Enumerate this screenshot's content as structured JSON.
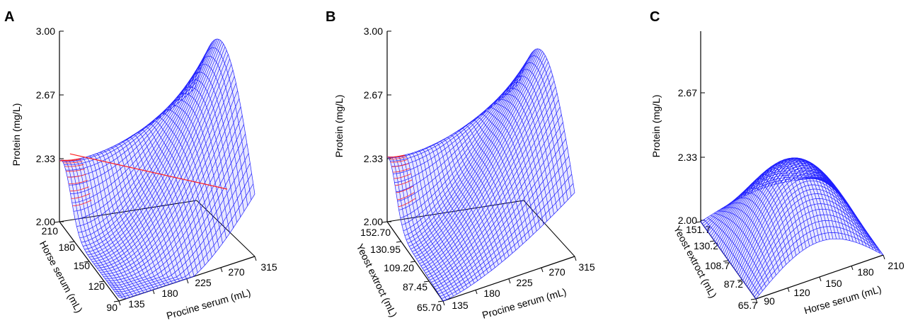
{
  "chart_data": [
    {
      "type": "surface3d",
      "panel_label": "A",
      "zlabel": "Protein (mg/L)",
      "zticks": [
        "2.00",
        "2.33",
        "2.67",
        "3.00"
      ],
      "zlim": [
        2.0,
        3.0
      ],
      "xlabel": "Procine serum (mL)",
      "xticks": [
        "135",
        "180",
        "225",
        "270",
        "315"
      ],
      "xlim": [
        135,
        315
      ],
      "ylabel": "Horse serum (mL)",
      "yticks": [
        "90",
        "120",
        "150",
        "180",
        "210"
      ],
      "ylim": [
        90,
        210
      ],
      "surface_color": "#1f1fff",
      "contour_color": "#ff2020",
      "peak": {
        "x": 315,
        "y": 210,
        "z": 2.88
      }
    },
    {
      "type": "surface3d",
      "panel_label": "B",
      "zlabel": "Protein (mg/L)",
      "zticks": [
        "2.00",
        "2.33",
        "2.67",
        "3.00"
      ],
      "zlim": [
        2.0,
        3.0
      ],
      "xlabel": "Procine serum (mL)",
      "xticks": [
        "135",
        "180",
        "225",
        "270",
        "315"
      ],
      "xlim": [
        135,
        315
      ],
      "ylabel": "Yeost extroct (mL)",
      "yticks": [
        "65.70",
        "87.45",
        "109.20",
        "130.95",
        "152.70"
      ],
      "ylim": [
        65.7,
        152.7
      ],
      "surface_color": "#1f1fff",
      "contour_color": "#ff2020",
      "peak": {
        "x": 315,
        "y": 152.7,
        "z": 2.84
      }
    },
    {
      "type": "surface3d",
      "panel_label": "C",
      "zlabel": "Protein (mg/L)",
      "zticks": [
        "2.00",
        "2.33",
        "2.67"
      ],
      "zlim": [
        2.0,
        2.7
      ],
      "xlabel": "Horse serum (mL)",
      "xticks": [
        "90",
        "120",
        "150",
        "180",
        "210"
      ],
      "xlim": [
        90,
        210
      ],
      "ylabel": "Yeost extroct (mL)",
      "yticks": [
        "65.7",
        "87.2",
        "108.7",
        "130.2",
        "151.7"
      ],
      "ylim": [
        65.7,
        151.7
      ],
      "surface_color": "#1f1fff",
      "peak": {
        "x": 150,
        "y": 108.7,
        "z": 2.41
      }
    }
  ]
}
